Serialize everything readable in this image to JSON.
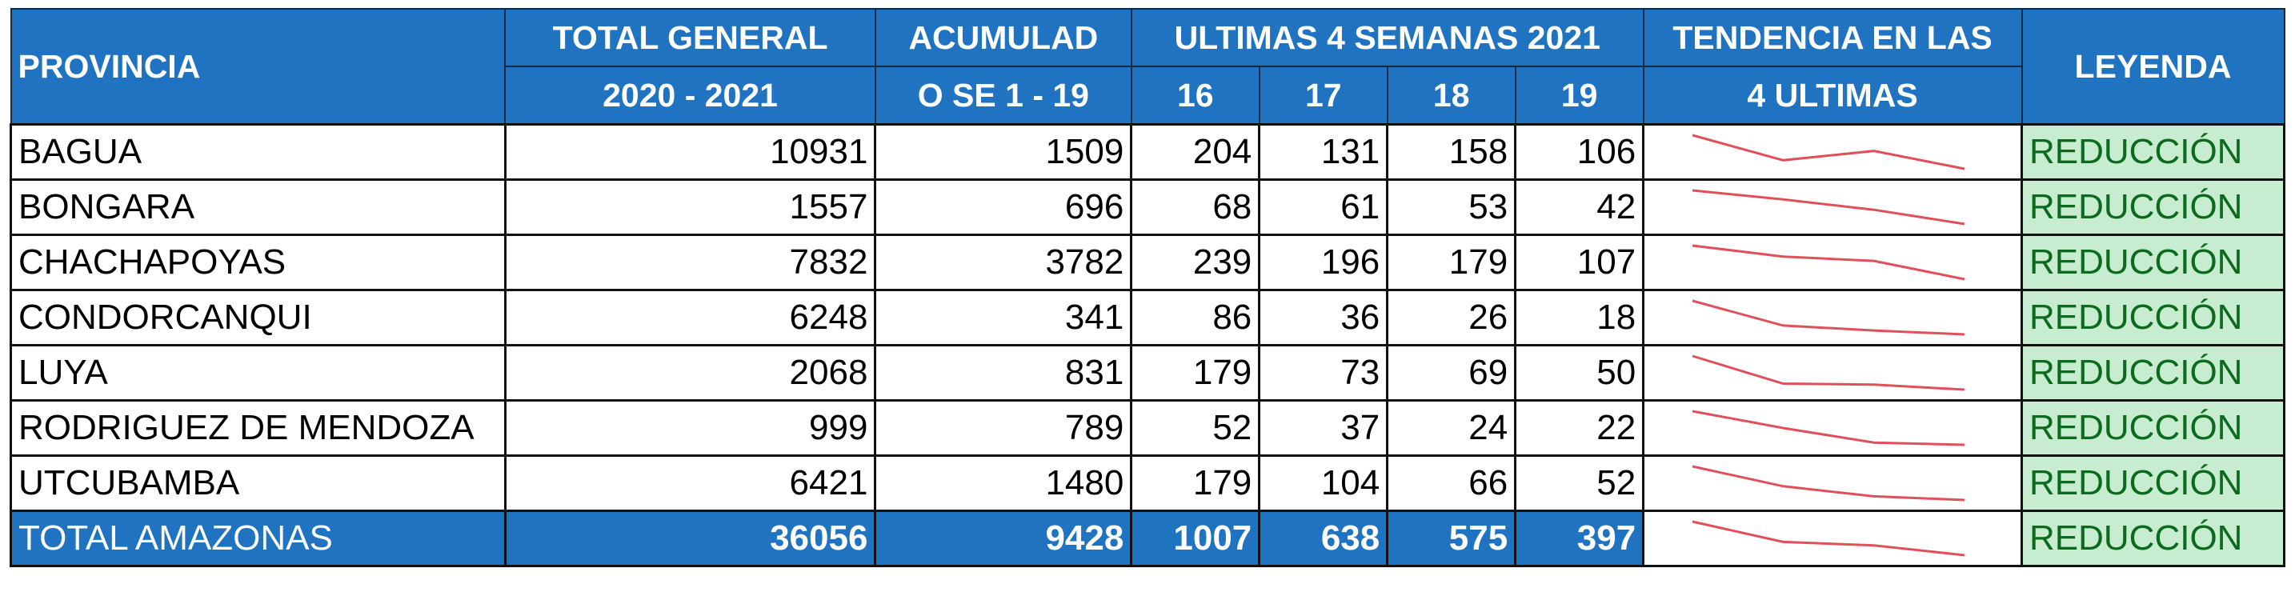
{
  "headers": {
    "provincia": "PROVINCIA",
    "total_line1": "TOTAL GENERAL",
    "total_line2": "2020 - 2021",
    "acum_line1": "ACUMULAD",
    "acum_line2": "O SE 1 - 19",
    "weeks_group": "ULTIMAS 4 SEMANAS 2021",
    "weeks": [
      "16",
      "17",
      "18",
      "19"
    ],
    "trend_line1": "TENDENCIA EN LAS",
    "trend_line2": "4 ULTIMAS",
    "leyenda": "LEYENDA"
  },
  "rows": [
    {
      "name": "BAGUA",
      "total": "10931",
      "acum": "1509",
      "w": [
        204,
        131,
        158,
        106
      ],
      "legend": "REDUCCIÓN"
    },
    {
      "name": "BONGARA",
      "total": "1557",
      "acum": "696",
      "w": [
        68,
        61,
        53,
        42
      ],
      "legend": "REDUCCIÓN"
    },
    {
      "name": "CHACHAPOYAS",
      "total": "7832",
      "acum": "3782",
      "w": [
        239,
        196,
        179,
        107
      ],
      "legend": "REDUCCIÓN"
    },
    {
      "name": "CONDORCANQUI",
      "total": "6248",
      "acum": "341",
      "w": [
        86,
        36,
        26,
        18
      ],
      "legend": "REDUCCIÓN"
    },
    {
      "name": "LUYA",
      "total": "2068",
      "acum": "831",
      "w": [
        179,
        73,
        69,
        50
      ],
      "legend": "REDUCCIÓN"
    },
    {
      "name": "RODRIGUEZ DE MENDOZA",
      "total": "999",
      "acum": "789",
      "w": [
        52,
        37,
        24,
        22
      ],
      "legend": "REDUCCIÓN"
    },
    {
      "name": "UTCUBAMBA",
      "total": "6421",
      "acum": "1480",
      "w": [
        179,
        104,
        66,
        52
      ],
      "legend": "REDUCCIÓN"
    }
  ],
  "total": {
    "name": "TOTAL AMAZONAS",
    "total": "36056",
    "acum": "9428",
    "w": [
      1007,
      638,
      575,
      397
    ],
    "legend": "REDUCCIÓN"
  },
  "colors": {
    "header_bg": "#1f73c0",
    "sparkline": "#e0505a",
    "legend_bg": "#c7eccf",
    "legend_text": "#0c6a1e"
  }
}
